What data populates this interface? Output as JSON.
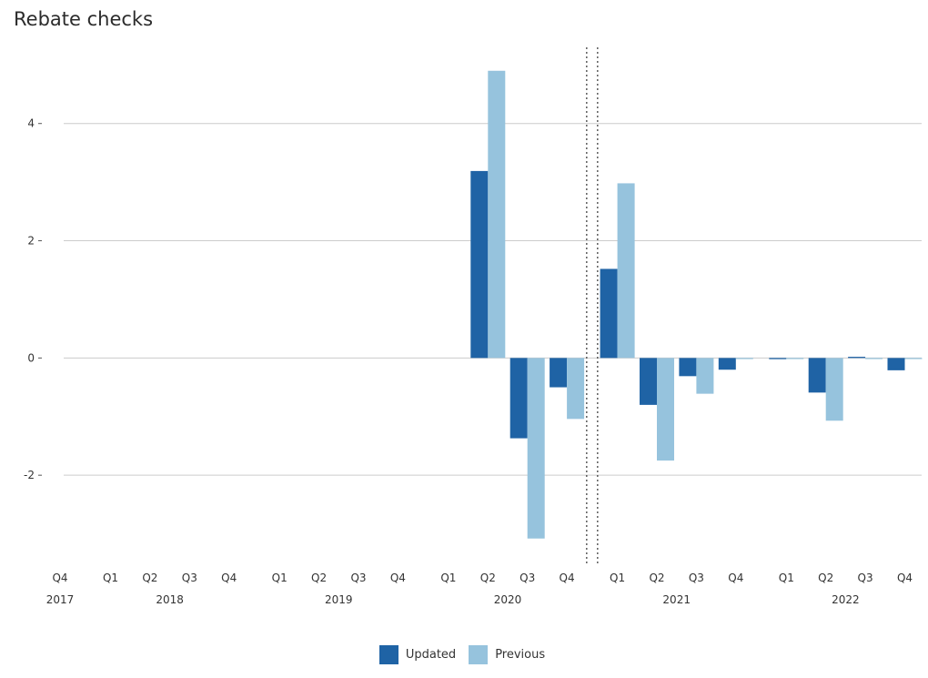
{
  "chart_data": {
    "type": "bar",
    "title": "Rebate checks",
    "xlabel": "",
    "ylabel": "",
    "ylim": [
      -3.55,
      5.3
    ],
    "yticks": [
      -2,
      0,
      2,
      4
    ],
    "ytick_labels": [
      "-2",
      "0",
      "2",
      "4"
    ],
    "grid": true,
    "legend_position": "bottom",
    "categories": [
      {
        "quarter": "Q4",
        "year": "2017"
      },
      {
        "quarter": "Q1",
        "year": "2018"
      },
      {
        "quarter": "Q2",
        "year": "2018"
      },
      {
        "quarter": "Q3",
        "year": "2018"
      },
      {
        "quarter": "Q4",
        "year": "2018"
      },
      {
        "quarter": "Q1",
        "year": "2019"
      },
      {
        "quarter": "Q2",
        "year": "2019"
      },
      {
        "quarter": "Q3",
        "year": "2019"
      },
      {
        "quarter": "Q4",
        "year": "2019"
      },
      {
        "quarter": "Q1",
        "year": "2020"
      },
      {
        "quarter": "Q2",
        "year": "2020"
      },
      {
        "quarter": "Q3",
        "year": "2020"
      },
      {
        "quarter": "Q4",
        "year": "2020"
      },
      {
        "quarter": "Q1",
        "year": "2021"
      },
      {
        "quarter": "Q2",
        "year": "2021"
      },
      {
        "quarter": "Q3",
        "year": "2021"
      },
      {
        "quarter": "Q4",
        "year": "2021"
      },
      {
        "quarter": "Q1",
        "year": "2022"
      },
      {
        "quarter": "Q2",
        "year": "2022"
      },
      {
        "quarter": "Q3",
        "year": "2022"
      },
      {
        "quarter": "Q4",
        "year": "2022"
      }
    ],
    "year_labels": [
      "2017",
      "2018",
      "2019",
      "2020",
      "2021",
      "2022"
    ],
    "projection_divider": "between 2020 Q4 and 2021 Q1",
    "series": [
      {
        "name": "Updated",
        "color": "#1f63a5",
        "values": [
          0,
          0,
          0,
          0,
          0,
          0,
          0,
          0,
          0,
          0,
          3.19,
          -1.37,
          -0.5,
          1.52,
          -0.8,
          -0.31,
          -0.2,
          -0.02,
          -0.59,
          0.02,
          -0.21
        ]
      },
      {
        "name": "Previous",
        "color": "#96c3dd",
        "values": [
          0,
          0,
          0,
          0,
          0,
          0,
          0,
          0,
          0,
          0,
          4.9,
          -3.08,
          -1.04,
          2.98,
          -1.75,
          -0.61,
          -0.01,
          -0.01,
          -1.07,
          -0.01,
          -0.01
        ]
      }
    ]
  }
}
